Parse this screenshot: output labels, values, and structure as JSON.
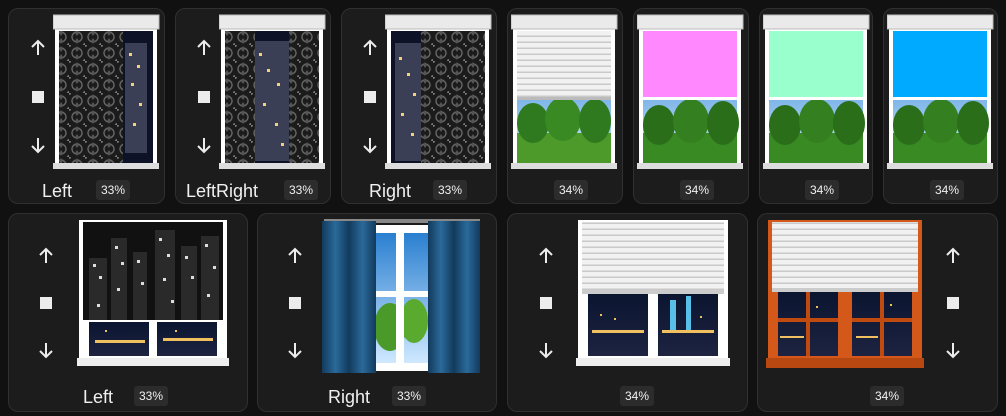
{
  "colors": {
    "background": "#111111",
    "card": "#1c1c1c",
    "badge": "#2c2c2c",
    "pink_blind": "#ff88ff",
    "mint_blind": "#99ffcc",
    "blue_blind": "#00aaff",
    "curtain_blue": "#1d4f78",
    "wood_frame": "#d4581a"
  },
  "icons": {
    "up": "arrow-up-icon",
    "stop": "stop-icon",
    "down": "arrow-down-icon"
  },
  "top_row": [
    {
      "label": "Left",
      "percent": "33%",
      "blind_type": "patterned-roller"
    },
    {
      "label": "LeftRight",
      "percent": "33%",
      "blind_type": "patterned-roller"
    },
    {
      "label": "Right",
      "percent": "33%",
      "blind_type": "patterned-roller"
    },
    {
      "label": "",
      "percent": "34%",
      "blind_type": "white-slats"
    },
    {
      "label": "",
      "percent": "34%",
      "blind_type": "pink-roller"
    },
    {
      "label": "",
      "percent": "34%",
      "blind_type": "mint-roller"
    },
    {
      "label": "",
      "percent": "34%",
      "blind_type": "blue-roller"
    }
  ],
  "bottom_row": [
    {
      "label": "Left",
      "percent": "33%",
      "blind_type": "city-roller"
    },
    {
      "label": "Right",
      "percent": "33%",
      "blind_type": "curtains"
    },
    {
      "label": "",
      "percent": "34%",
      "blind_type": "white-venetian"
    },
    {
      "label": "",
      "percent": "34%",
      "blind_type": "wood-venetian"
    }
  ]
}
